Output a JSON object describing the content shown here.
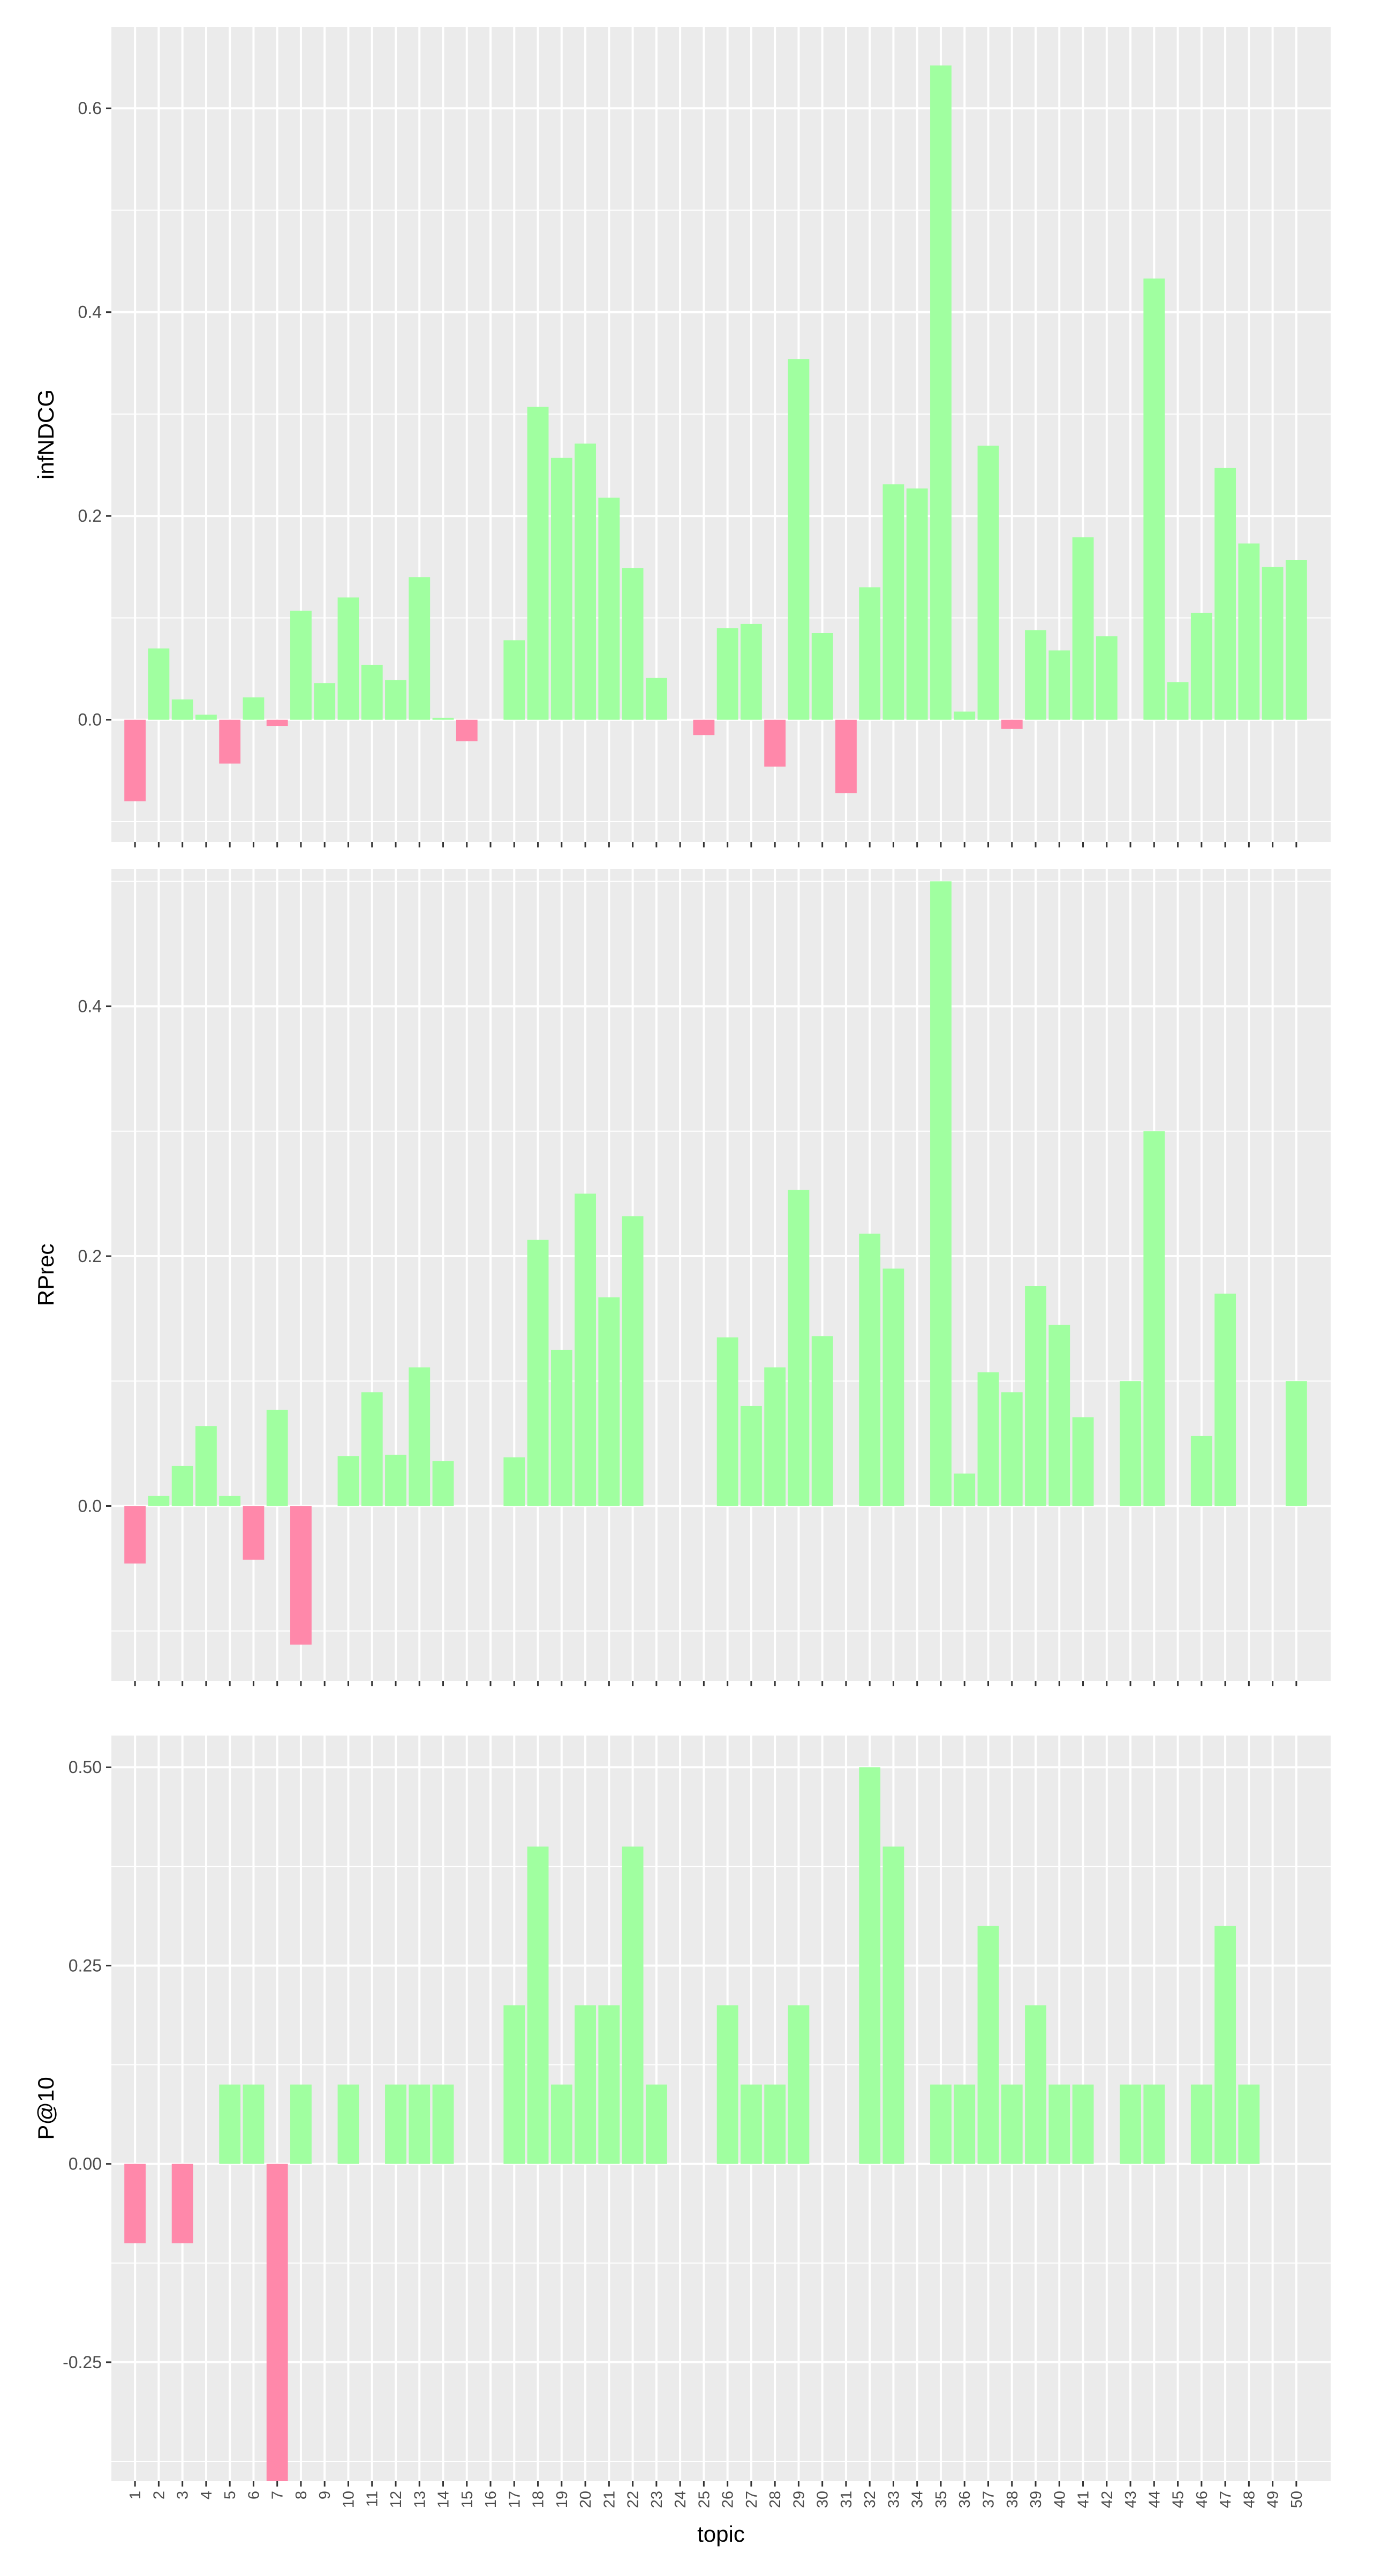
{
  "colors": {
    "positive": "#A0FFA0",
    "negative": "#FF88AA",
    "panel_bg": "#EBEBEB",
    "grid": "#FFFFFF",
    "text": "#4D4D4D",
    "title_text": "#000000"
  },
  "chart_data": [
    {
      "type": "bar",
      "ylabel": "infNDCG",
      "xlabel": "",
      "ylim": [
        -0.12,
        0.68
      ],
      "yticks": [
        0.0,
        0.2,
        0.4,
        0.6
      ],
      "ytick_labels": [
        "0.0",
        "0.2",
        "0.4",
        "0.6"
      ],
      "categories": [
        1,
        2,
        3,
        4,
        5,
        6,
        7,
        8,
        9,
        10,
        11,
        12,
        13,
        14,
        15,
        16,
        17,
        18,
        19,
        20,
        21,
        22,
        23,
        24,
        25,
        26,
        27,
        28,
        29,
        30,
        31,
        32,
        33,
        34,
        35,
        36,
        37,
        38,
        39,
        40,
        41,
        42,
        43,
        44,
        45,
        46,
        47,
        48,
        49,
        50
      ],
      "show_tick_labels": false,
      "values": [
        -0.08,
        0.07,
        0.02,
        0.005,
        -0.043,
        0.022,
        -0.006,
        0.107,
        0.036,
        0.12,
        0.054,
        0.039,
        0.14,
        0.002,
        -0.021,
        null,
        0.078,
        0.307,
        0.257,
        0.271,
        0.218,
        0.149,
        0.041,
        null,
        -0.015,
        0.09,
        0.094,
        -0.046,
        0.354,
        0.085,
        -0.072,
        0.13,
        0.231,
        0.227,
        0.642,
        0.008,
        0.269,
        -0.009,
        0.088,
        0.068,
        0.179,
        0.082,
        null,
        0.433,
        0.037,
        0.105,
        0.247,
        0.173,
        0.15,
        0.157
      ]
    },
    {
      "type": "bar",
      "ylabel": "RPrec",
      "xlabel": "",
      "ylim": [
        -0.14,
        0.51
      ],
      "yticks": [
        0.0,
        0.2,
        0.4
      ],
      "ytick_labels": [
        "0.0",
        "0.2",
        "0.4"
      ],
      "categories": [
        1,
        2,
        3,
        4,
        5,
        6,
        7,
        8,
        9,
        10,
        11,
        12,
        13,
        14,
        15,
        16,
        17,
        18,
        19,
        20,
        21,
        22,
        23,
        24,
        25,
        26,
        27,
        28,
        29,
        30,
        31,
        32,
        33,
        34,
        35,
        36,
        37,
        38,
        39,
        40,
        41,
        42,
        43,
        44,
        45,
        46,
        47,
        48,
        49,
        50
      ],
      "show_tick_labels": false,
      "values": [
        -0.046,
        0.008,
        0.032,
        0.064,
        0.008,
        -0.043,
        0.077,
        -0.111,
        null,
        0.04,
        0.091,
        0.041,
        0.111,
        0.036,
        null,
        null,
        0.039,
        0.213,
        0.125,
        0.25,
        0.167,
        0.232,
        null,
        null,
        null,
        0.135,
        0.08,
        0.111,
        0.253,
        0.136,
        null,
        0.218,
        0.19,
        null,
        0.5,
        0.026,
        0.107,
        0.091,
        0.176,
        0.145,
        0.071,
        null,
        0.1,
        0.3,
        null,
        0.056,
        0.17,
        null,
        null,
        0.1
      ]
    },
    {
      "type": "bar",
      "ylabel": "P@10",
      "xlabel": "topic",
      "ylim": [
        -0.4,
        0.54
      ],
      "yticks": [
        -0.25,
        0.0,
        0.25,
        0.5
      ],
      "ytick_labels": [
        "-0.25",
        "0.00",
        "0.25",
        "0.50"
      ],
      "categories": [
        1,
        2,
        3,
        4,
        5,
        6,
        7,
        8,
        9,
        10,
        11,
        12,
        13,
        14,
        15,
        16,
        17,
        18,
        19,
        20,
        21,
        22,
        23,
        24,
        25,
        26,
        27,
        28,
        29,
        30,
        31,
        32,
        33,
        34,
        35,
        36,
        37,
        38,
        39,
        40,
        41,
        42,
        43,
        44,
        45,
        46,
        47,
        48,
        49,
        50
      ],
      "show_tick_labels": true,
      "values": [
        -0.1,
        null,
        -0.1,
        null,
        0.1,
        0.1,
        -0.4,
        0.1,
        null,
        0.1,
        null,
        0.1,
        0.1,
        0.1,
        null,
        null,
        0.2,
        0.4,
        0.1,
        0.2,
        0.2,
        0.4,
        0.1,
        null,
        null,
        0.2,
        0.1,
        0.1,
        0.2,
        null,
        null,
        0.5,
        0.4,
        null,
        0.1,
        0.1,
        0.3,
        0.1,
        0.2,
        0.1,
        0.1,
        null,
        0.1,
        0.1,
        null,
        0.1,
        0.3,
        0.1,
        null,
        null
      ]
    }
  ]
}
